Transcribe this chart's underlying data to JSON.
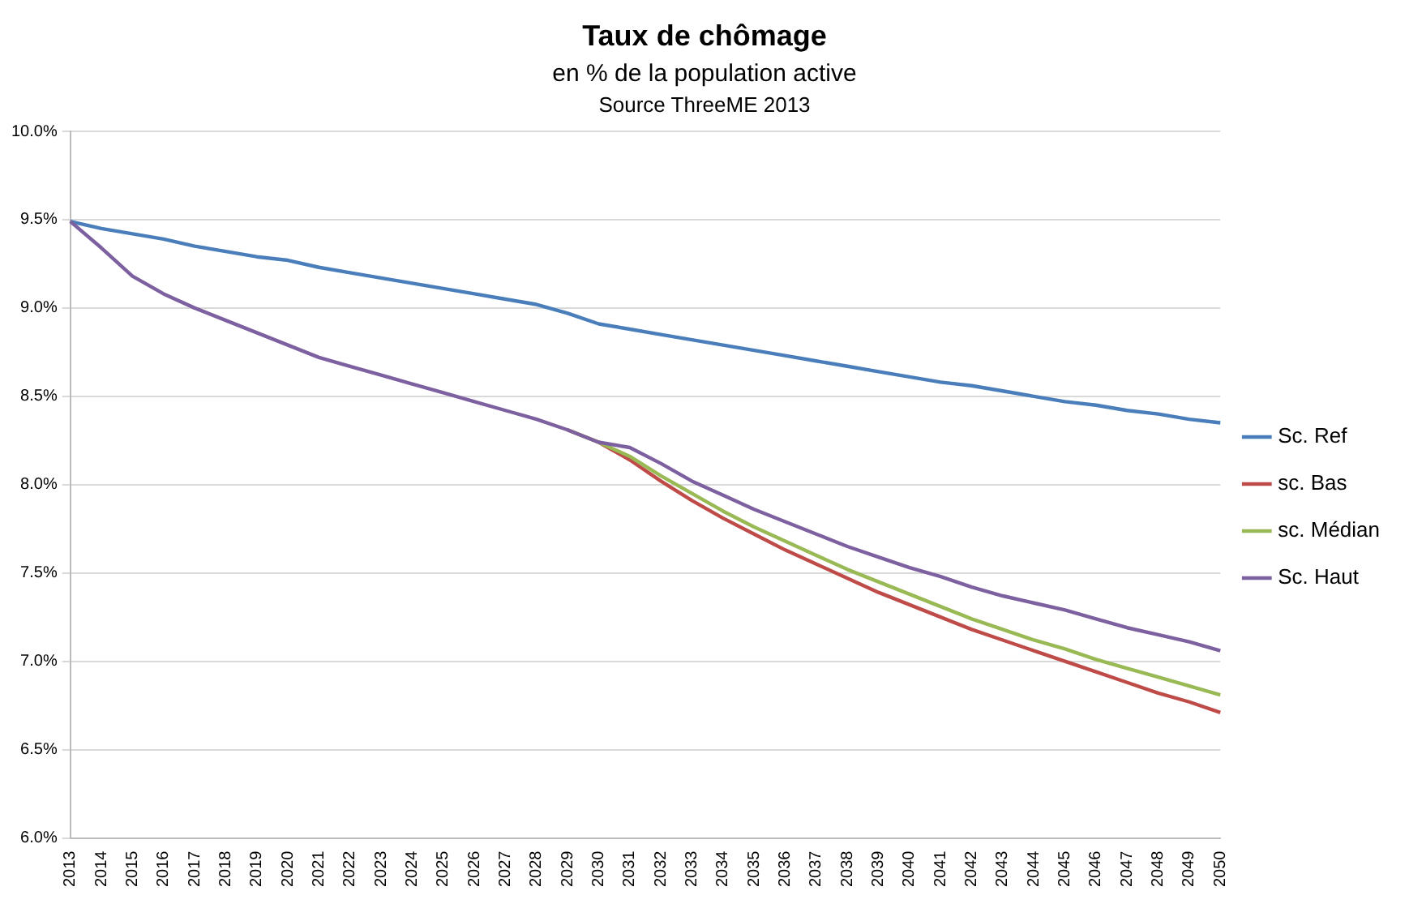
{
  "chart_data": {
    "type": "line",
    "title": "Taux de chômage",
    "subtitle": "en % de la population active",
    "annotations": [
      "Source ThreeME 2013"
    ],
    "categories": [
      "2013",
      "2014",
      "2015",
      "2016",
      "2017",
      "2018",
      "2019",
      "2020",
      "2021",
      "2022",
      "2023",
      "2024",
      "2025",
      "2026",
      "2027",
      "2028",
      "2029",
      "2030",
      "2031",
      "2032",
      "2033",
      "2034",
      "2035",
      "2036",
      "2037",
      "2038",
      "2039",
      "2040",
      "2041",
      "2042",
      "2043",
      "2044",
      "2045",
      "2046",
      "2047",
      "2048",
      "2049",
      "2050"
    ],
    "series": [
      {
        "name": "Sc. Ref",
        "color": "#4a7ebb",
        "values": [
          9.49,
          9.45,
          9.42,
          9.39,
          9.35,
          9.32,
          9.29,
          9.27,
          9.23,
          9.2,
          9.17,
          9.14,
          9.11,
          9.08,
          9.05,
          9.02,
          8.97,
          8.91,
          8.88,
          8.85,
          8.82,
          8.79,
          8.76,
          8.73,
          8.7,
          8.67,
          8.64,
          8.61,
          8.58,
          8.56,
          8.53,
          8.5,
          8.47,
          8.45,
          8.42,
          8.4,
          8.37,
          8.35
        ]
      },
      {
        "name": "sc. Bas",
        "color": "#be4b48",
        "values": [
          null,
          null,
          null,
          null,
          null,
          null,
          null,
          null,
          null,
          null,
          null,
          null,
          null,
          null,
          null,
          null,
          8.31,
          8.24,
          8.14,
          8.02,
          7.91,
          7.81,
          7.72,
          7.63,
          7.55,
          7.47,
          7.39,
          7.32,
          7.25,
          7.18,
          7.12,
          7.06,
          7.0,
          6.94,
          6.88,
          6.82,
          6.77,
          6.71
        ]
      },
      {
        "name": "sc. Médian",
        "color": "#98b954",
        "values": [
          null,
          null,
          null,
          null,
          null,
          null,
          null,
          null,
          null,
          null,
          null,
          null,
          null,
          null,
          null,
          null,
          8.31,
          8.24,
          8.16,
          8.05,
          7.95,
          7.85,
          7.76,
          7.68,
          7.6,
          7.52,
          7.45,
          7.38,
          7.31,
          7.24,
          7.18,
          7.12,
          7.07,
          7.01,
          6.96,
          6.91,
          6.86,
          6.81
        ]
      },
      {
        "name": "Sc. Haut",
        "color": "#7d60a0",
        "values": [
          9.49,
          9.34,
          9.18,
          9.08,
          9.0,
          8.93,
          8.86,
          8.79,
          8.72,
          8.67,
          8.62,
          8.57,
          8.52,
          8.47,
          8.42,
          8.37,
          8.31,
          8.24,
          8.21,
          8.12,
          8.02,
          7.94,
          7.86,
          7.79,
          7.72,
          7.65,
          7.59,
          7.53,
          7.48,
          7.42,
          7.37,
          7.33,
          7.29,
          7.24,
          7.19,
          7.15,
          7.11,
          7.06
        ]
      }
    ],
    "ylim": [
      6,
      10
    ],
    "yticks": [
      {
        "value": 6,
        "label": "6.0%"
      },
      {
        "value": 6.5,
        "label": "6.5%"
      },
      {
        "value": 7,
        "label": "7.0%"
      },
      {
        "value": 7.5,
        "label": "7.5%"
      },
      {
        "value": 8,
        "label": "8.0%"
      },
      {
        "value": 8.5,
        "label": "8.5%"
      },
      {
        "value": 9,
        "label": "9.0%"
      },
      {
        "value": 9.5,
        "label": "9.5%"
      },
      {
        "value": 10,
        "label": "10.0%"
      }
    ],
    "grid": "y",
    "legend": "right",
    "marker": "none",
    "line_style": "solid"
  }
}
